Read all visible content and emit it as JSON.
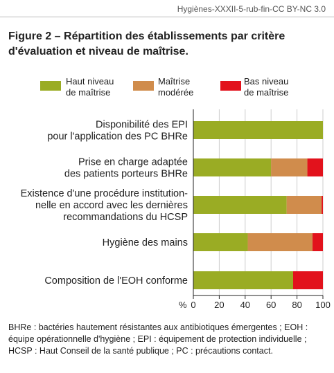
{
  "source_line": "Hygiènes-XXXII-5-rub-fin-CC BY-NC 3.0",
  "figure_title": "Figure 2 – Répartition des établissements par critère d'évaluation et niveau de maîtrise.",
  "colors": {
    "haut": "#9aac24",
    "moderee": "#d08c4c",
    "bas": "#e2121c",
    "grid": "#cccccc"
  },
  "legend": [
    {
      "line1": "Haut niveau",
      "line2": "de maîtrise"
    },
    {
      "line1": "Maîtrise",
      "line2": "modérée"
    },
    {
      "line1": "Bas niveau",
      "line2": "de maîtrise"
    }
  ],
  "chart_data": {
    "type": "bar",
    "orientation": "horizontal",
    "stacked": true,
    "categories": [
      [
        "Disponibilité des EPI",
        "pour l'application des PC BHRe"
      ],
      [
        "Prise en charge adaptée",
        "des patients porteurs BHRe"
      ],
      [
        "Existence d'une procédure institution-",
        "nelle en accord avec les dernières",
        "recommandations du HCSP"
      ],
      [
        "Hygiène des mains"
      ],
      [
        "Composition de l'EOH conforme"
      ]
    ],
    "series": [
      {
        "name": "Haut niveau de maîtrise",
        "values": [
          100,
          60,
          72,
          42,
          77
        ]
      },
      {
        "name": "Maîtrise modérée",
        "values": [
          0,
          28,
          27,
          50,
          0
        ]
      },
      {
        "name": "Bas niveau de maîtrise",
        "values": [
          0,
          13,
          3,
          10,
          25
        ]
      }
    ],
    "xlabel": "%",
    "xlim": [
      0,
      100
    ],
    "xticks": [
      0,
      20,
      40,
      60,
      80,
      100
    ],
    "grid": true,
    "legend_position": "top"
  },
  "footnote": "BHRe : bactéries hautement résistantes aux antibiotiques émergentes ; EOH : équipe opérationnelle d'hygiène ; EPI : équipement de protection individuelle ; HCSP : Haut Conseil de la santé publique ; PC : précautions contact."
}
